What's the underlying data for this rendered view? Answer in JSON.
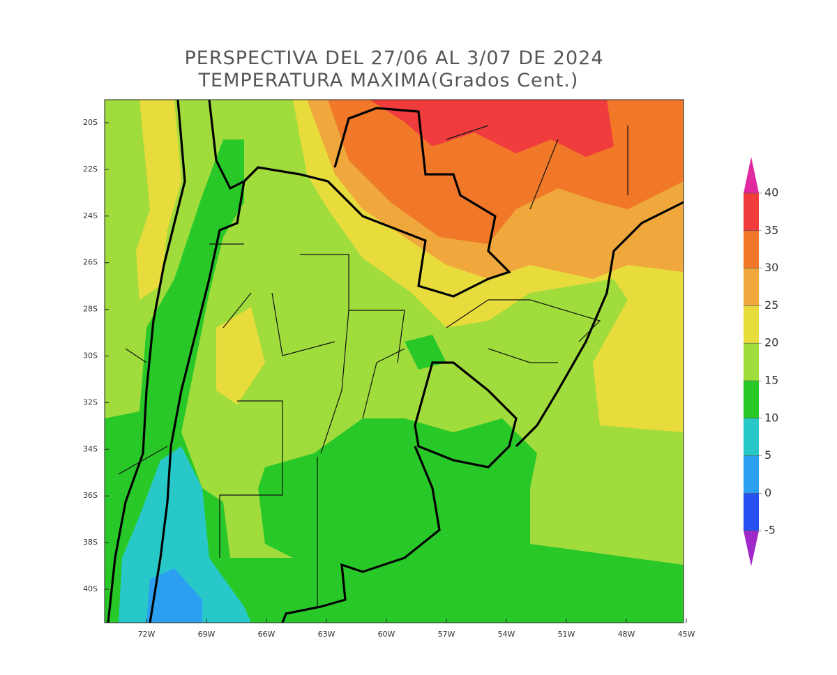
{
  "title": [
    "PERSPECTIVA DEL 27/06 AL 3/07 DE 2024",
    "TEMPERATURA MAXIMA(Grados Cent.)"
  ],
  "lat_labels": [
    "20S",
    "22S",
    "24S",
    "26S",
    "28S",
    "30S",
    "32S",
    "34S",
    "36S",
    "38S",
    "40S"
  ],
  "lon_labels": [
    "72W",
    "69W",
    "66W",
    "63W",
    "60W",
    "57W",
    "54W",
    "51W",
    "48W",
    "45W"
  ],
  "colorbar": {
    "ticks": [
      40,
      35,
      30,
      25,
      20,
      15,
      10,
      5,
      0,
      -5
    ]
  }
}
